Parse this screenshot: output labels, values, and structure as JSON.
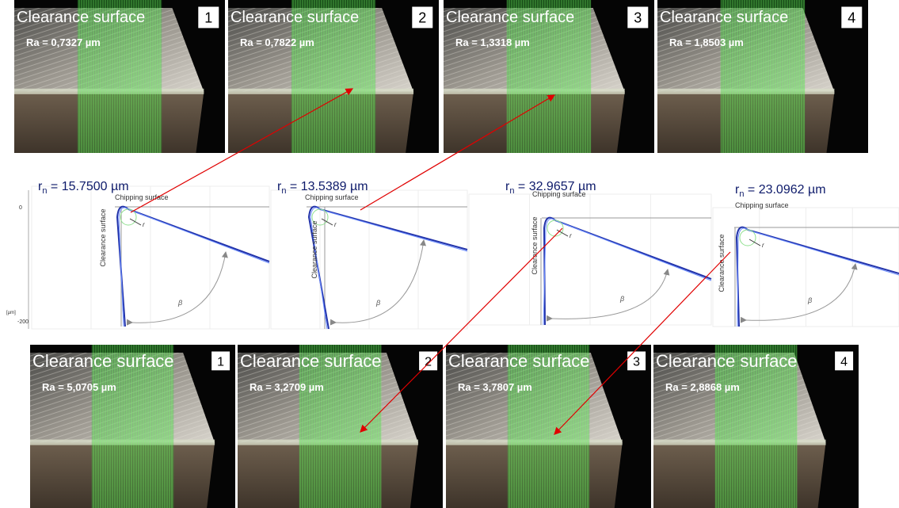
{
  "top_panels": [
    {
      "title": "Clearance surface",
      "number": "1",
      "ra": "Ra = 0,7327 µm"
    },
    {
      "title": "Clearance surface",
      "number": "2",
      "ra": "Ra = 0,7822 µm"
    },
    {
      "title": "Clearance surface",
      "number": "3",
      "ra": "Ra = 1,3318 µm"
    },
    {
      "title": "Clearance surface",
      "number": "4",
      "ra": "Ra = 1,8503 µm"
    }
  ],
  "profiles": [
    {
      "r_symbol": "r",
      "r_sub": "n",
      "r_value": " = 15.7500 µm",
      "chipping": "Chipping surface",
      "clearance": "Clearance surface",
      "beta": "β",
      "r_label": "r"
    },
    {
      "r_symbol": "r",
      "r_sub": "n",
      "r_value": " = 13.5389 µm",
      "chipping": "Chipping surface",
      "clearance": "Clearance surface",
      "beta": "β",
      "r_label": "r"
    },
    {
      "r_symbol": "r",
      "r_sub": "n",
      "r_value": " = 32.9657 µm",
      "chipping": "Chipping surface",
      "clearance": "Clearance surface",
      "beta": "β",
      "r_label": "r"
    },
    {
      "r_symbol": "r",
      "r_sub": "n",
      "r_value": " = 23.0962 µm",
      "chipping": "Chipping surface",
      "clearance": "Clearance surface",
      "beta": "β",
      "r_label": "r"
    }
  ],
  "profile_axis": {
    "zero": "0",
    "lower": "-200",
    "unit": "[µm]"
  },
  "bottom_panels": [
    {
      "title": "Clearance surface",
      "number": "1",
      "ra": "Ra = 5,0705 µm"
    },
    {
      "title": "Clearance surface",
      "number": "2",
      "ra": "Ra = 3,2709 µm"
    },
    {
      "title": "Clearance surface",
      "number": "3",
      "ra": "Ra = 3,7807 µm"
    },
    {
      "title": "Clearance surface",
      "number": "4",
      "ra": "Ra = 2,8868 µm"
    }
  ]
}
